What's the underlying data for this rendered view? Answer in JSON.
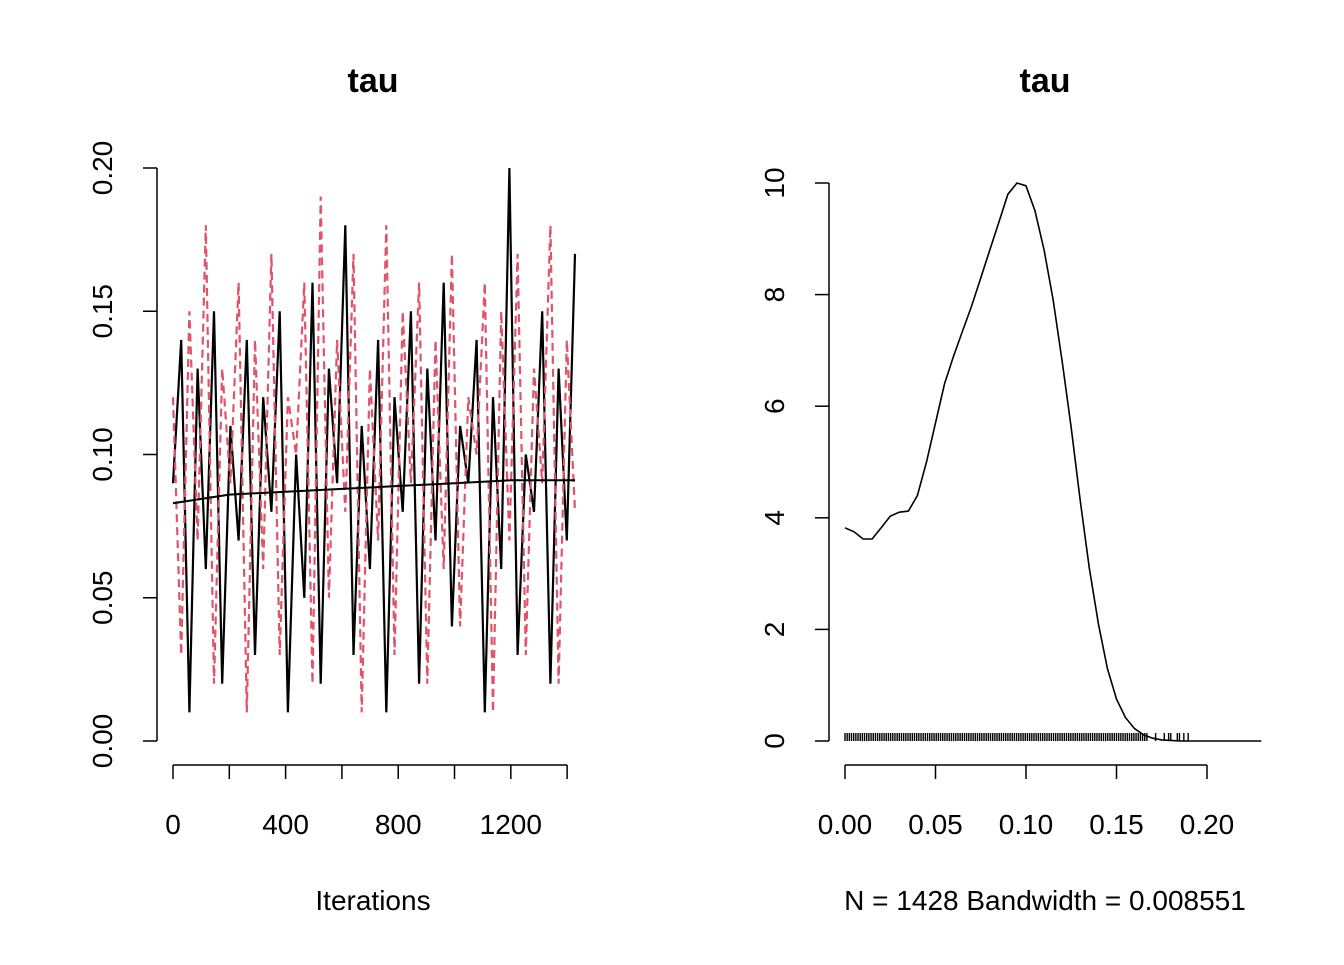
{
  "chart_data": [
    {
      "type": "line",
      "title": "tau",
      "xlabel": "Iterations",
      "ylabel": "",
      "xlim": [
        0,
        1428
      ],
      "ylim": [
        0,
        0.2
      ],
      "xticks": [
        0,
        400,
        800,
        1200
      ],
      "xtick_labels": [
        "0",
        "400",
        "800",
        "1200"
      ],
      "yticks": [
        0.0,
        0.05,
        0.1,
        0.15,
        0.2
      ],
      "ytick_labels": [
        "0.00",
        "0.05",
        "0.10",
        "0.15",
        "0.20"
      ],
      "grid": false,
      "series": [
        {
          "color": "#000000",
          "linestyle": "solid",
          "values": [
            0.09,
            0.14,
            0.01,
            0.13,
            0.06,
            0.15,
            0.02,
            0.11,
            0.07,
            0.14,
            0.03,
            0.12,
            0.08,
            0.15,
            0.01,
            0.1,
            0.05,
            0.16,
            0.02,
            0.13,
            0.09,
            0.18,
            0.03,
            0.11,
            0.06,
            0.14,
            0.01,
            0.12,
            0.08,
            0.15,
            0.02,
            0.13,
            0.07,
            0.16,
            0.04,
            0.11,
            0.09,
            0.14,
            0.01,
            0.12,
            0.06,
            0.2,
            0.03,
            0.1,
            0.08,
            0.15,
            0.02,
            0.13,
            0.07,
            0.17
          ]
        },
        {
          "color": "#DF536B",
          "linestyle": "dashed",
          "values": [
            0.12,
            0.03,
            0.15,
            0.07,
            0.18,
            0.02,
            0.13,
            0.09,
            0.16,
            0.01,
            0.14,
            0.06,
            0.17,
            0.03,
            0.12,
            0.1,
            0.16,
            0.02,
            0.19,
            0.05,
            0.14,
            0.08,
            0.17,
            0.01,
            0.13,
            0.07,
            0.18,
            0.03,
            0.15,
            0.09,
            0.16,
            0.02,
            0.14,
            0.06,
            0.17,
            0.04,
            0.12,
            0.1,
            0.16,
            0.01,
            0.15,
            0.07,
            0.17,
            0.03,
            0.13,
            0.09,
            0.18,
            0.02,
            0.14,
            0.08
          ]
        },
        {
          "color": "#000000",
          "linestyle": "solid",
          "x": [
            0,
            200,
            400,
            600,
            800,
            1000,
            1200,
            1428
          ],
          "values": [
            0.083,
            0.086,
            0.087,
            0.088,
            0.089,
            0.09,
            0.091,
            0.091
          ]
        }
      ]
    },
    {
      "type": "area",
      "title": "tau",
      "xlabel": "N = 1428   Bandwidth = 0.008551",
      "ylabel": "",
      "xlim": [
        0,
        0.23
      ],
      "ylim": [
        0,
        10
      ],
      "xticks": [
        0.0,
        0.05,
        0.1,
        0.15,
        0.2
      ],
      "xtick_labels": [
        "0.00",
        "0.05",
        "0.10",
        "0.15",
        "0.20"
      ],
      "yticks": [
        0,
        2,
        4,
        6,
        8,
        10
      ],
      "ytick_labels": [
        "0",
        "2",
        "4",
        "6",
        "8",
        "10"
      ],
      "grid": false,
      "x": [
        0.0,
        0.005,
        0.01,
        0.015,
        0.02,
        0.025,
        0.03,
        0.035,
        0.04,
        0.045,
        0.05,
        0.055,
        0.06,
        0.065,
        0.07,
        0.075,
        0.08,
        0.085,
        0.09,
        0.095,
        0.1,
        0.105,
        0.11,
        0.115,
        0.12,
        0.125,
        0.13,
        0.135,
        0.14,
        0.145,
        0.15,
        0.155,
        0.16,
        0.165,
        0.17,
        0.175,
        0.18,
        0.185,
        0.19,
        0.195,
        0.2,
        0.21,
        0.22,
        0.23
      ],
      "values": [
        3.82,
        3.75,
        3.62,
        3.62,
        3.82,
        4.03,
        4.1,
        4.12,
        4.4,
        5.0,
        5.7,
        6.4,
        6.9,
        7.35,
        7.8,
        8.3,
        8.8,
        9.3,
        9.8,
        10.0,
        9.95,
        9.5,
        8.8,
        7.9,
        6.8,
        5.6,
        4.3,
        3.1,
        2.1,
        1.3,
        0.75,
        0.42,
        0.22,
        0.11,
        0.05,
        0.02,
        0.01,
        0.0,
        0.0,
        0.0,
        0.0,
        0.0,
        0.0,
        0.0
      ],
      "rug": "dense tick marks along the baseline from 0.00 to about 0.19"
    }
  ]
}
